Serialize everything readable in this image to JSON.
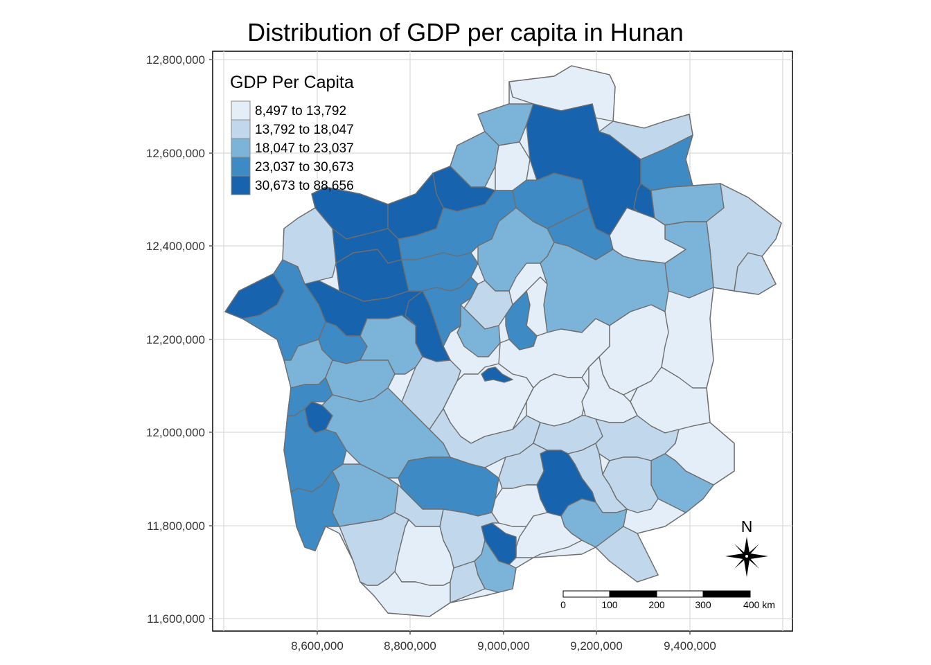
{
  "title": "Distribution of GDP per capita in Hunan",
  "axes": {
    "y_ticks": [
      "12,800,000",
      "12,600,000",
      "12,400,000",
      "12,200,000",
      "12,000,000",
      "11,800,000",
      "11,600,000"
    ],
    "x_ticks": [
      "8,600,000",
      "8,800,000",
      "9,000,000",
      "9,200,000",
      "9,400,000"
    ]
  },
  "legend": {
    "title": "GDP Per Capita",
    "items": [
      {
        "label": "8,497 to 13,792",
        "color": "#e3eef8"
      },
      {
        "label": "13,792 to 18,047",
        "color": "#c1d8ec"
      },
      {
        "label": "18,047 to 23,037",
        "color": "#7cb3d9"
      },
      {
        "label": "23,037 to 30,673",
        "color": "#3d8ac4"
      },
      {
        "label": "30,673 to 88,656",
        "color": "#1763ad"
      }
    ]
  },
  "north_arrow": {
    "label": "N"
  },
  "scale_bar": {
    "labels": [
      "0",
      "100",
      "200",
      "300",
      "400 km"
    ]
  },
  "colors": {
    "class1": "#e3eef8",
    "class2": "#c1d8ec",
    "class3": "#7cb3d9",
    "class4": "#3d8ac4",
    "class5": "#1763ad",
    "border": "#6e6e6e",
    "grid": "#d9d9d9"
  }
}
